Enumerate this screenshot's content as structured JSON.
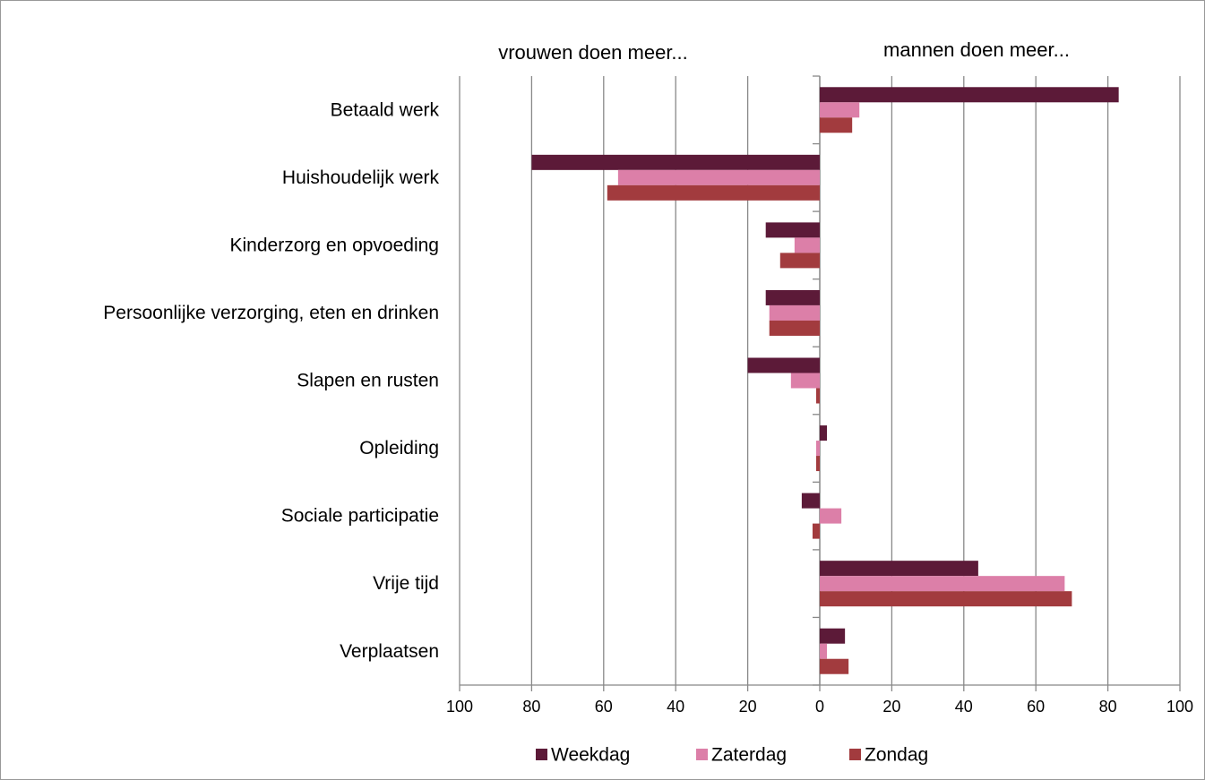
{
  "chart_data": {
    "type": "hbar",
    "annotations": [
      "vrouwen doen meer...",
      "mannen doen meer..."
    ],
    "categories": [
      "Betaald werk",
      "Huishoudelijk werk",
      "Kinderzorg en opvoeding",
      "Persoonlijke verzorging, eten en drinken",
      "Slapen en rusten",
      "Opleiding",
      "Sociale participatie",
      "Vrije tijd",
      "Verplaatsen"
    ],
    "series": [
      {
        "name": "Weekdag",
        "color": "#5c1a38",
        "values": [
          83,
          -80,
          -15,
          -15,
          -20,
          2,
          -5,
          44,
          7
        ]
      },
      {
        "name": "Zaterdag",
        "color": "#dc7fa8",
        "values": [
          11,
          -56,
          -7,
          -14,
          -8,
          -1,
          6,
          68,
          2
        ]
      },
      {
        "name": "Zondag",
        "color": "#a23b3e",
        "values": [
          9,
          -59,
          -11,
          -14,
          -1,
          -1,
          -2,
          70,
          8
        ]
      }
    ],
    "xlim": [
      -100,
      100
    ],
    "xticks": [
      {
        "value": -100,
        "label": "100"
      },
      {
        "value": -80,
        "label": "80"
      },
      {
        "value": -60,
        "label": "60"
      },
      {
        "value": -40,
        "label": "40"
      },
      {
        "value": -20,
        "label": "20"
      },
      0,
      20,
      40,
      60,
      80,
      100
    ],
    "grid": true,
    "legend": "bottom"
  }
}
